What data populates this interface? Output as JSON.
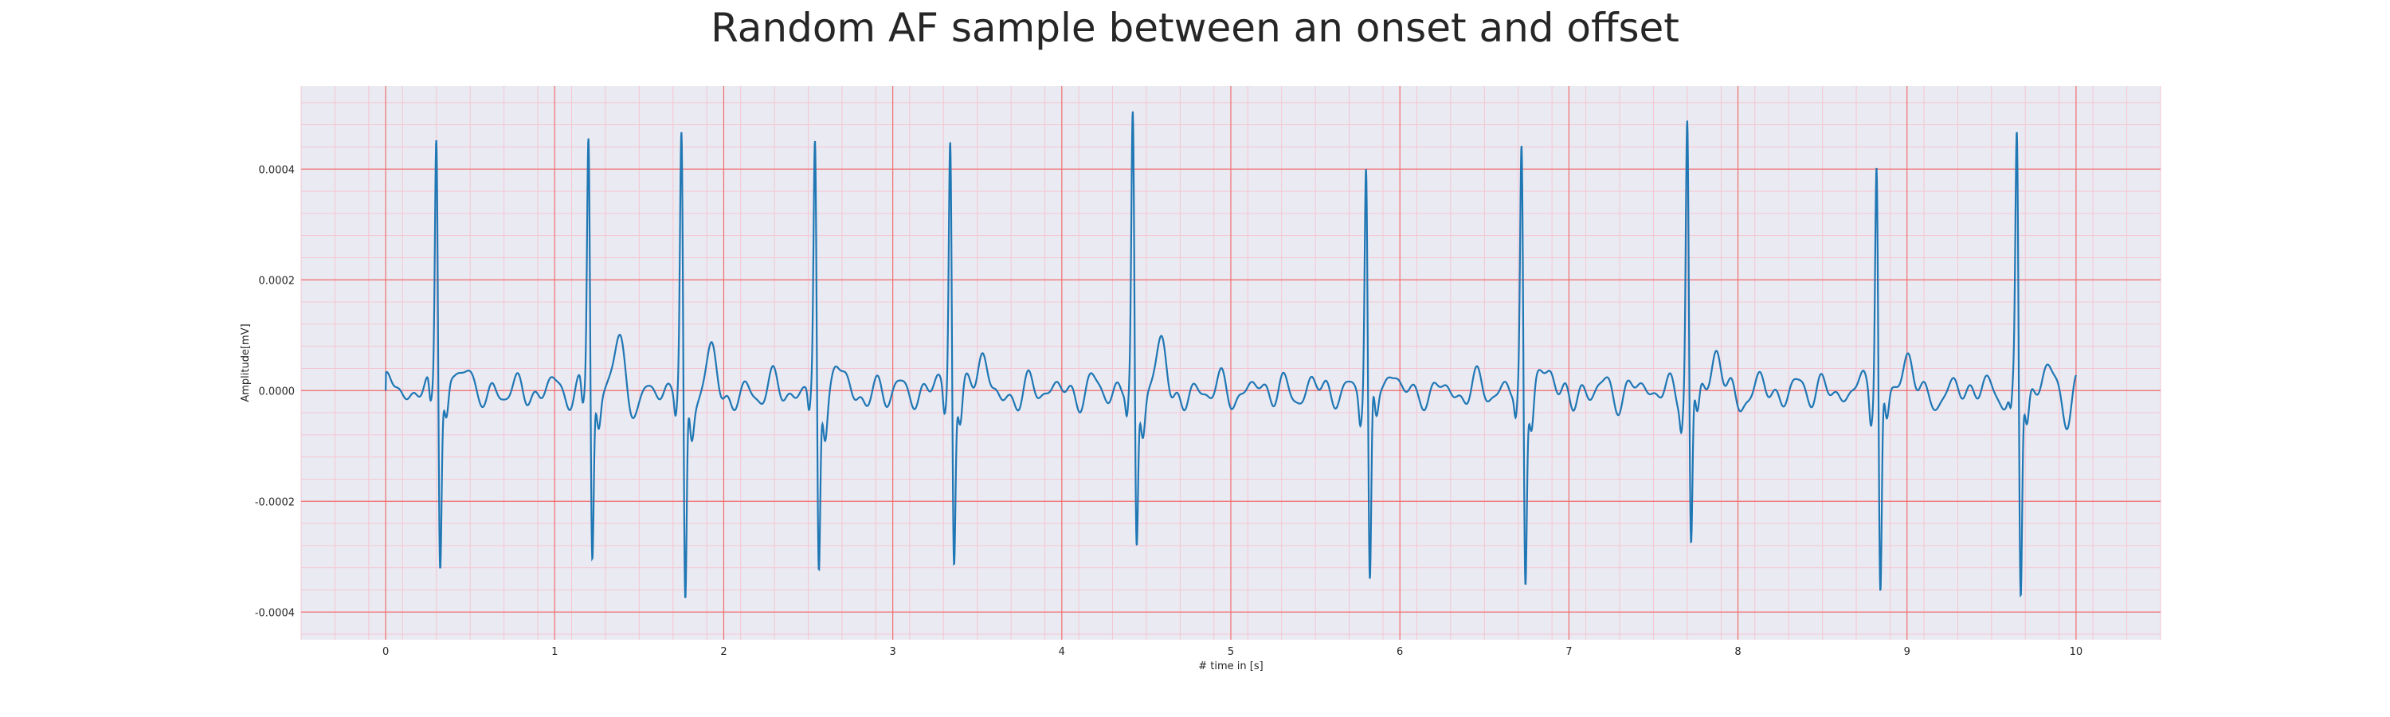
{
  "chart_data": {
    "type": "line",
    "title": "Random AF sample between an onset and offset",
    "xlabel": "# time in [s]",
    "ylabel": "Amplitude[mV]",
    "xlim": [
      -0.5,
      10.5
    ],
    "ylim": [
      -0.00045,
      0.00055
    ],
    "xticks": [
      0,
      1,
      2,
      3,
      4,
      5,
      6,
      7,
      8,
      9,
      10
    ],
    "xtick_labels": [
      "0",
      "1",
      "2",
      "3",
      "4",
      "5",
      "6",
      "7",
      "8",
      "9",
      "10"
    ],
    "yticks": [
      -0.0004,
      -0.0002,
      0.0,
      0.0002,
      0.0004
    ],
    "ytick_labels": [
      "-0.0004",
      "-0.0002",
      "0.0000",
      "0.0002",
      "0.0004"
    ],
    "grid": {
      "major": true,
      "minor": true,
      "major_color": "#f06d6d",
      "minor_color": "#f4c6d2"
    },
    "background_color": "#eaeaf2",
    "line_color": "#1f77b4",
    "r_peaks": [
      {
        "t": 0.3,
        "r": 0.00049,
        "s": -0.00031
      },
      {
        "t": 1.2,
        "r": 0.00048,
        "s": -0.00031
      },
      {
        "t": 1.75,
        "r": 0.00046,
        "s": -0.00041
      },
      {
        "t": 2.54,
        "r": 0.00045,
        "s": -0.00034
      },
      {
        "t": 3.34,
        "r": 0.00048,
        "s": -0.00031
      },
      {
        "t": 4.42,
        "r": 0.0005,
        "s": -0.00029
      },
      {
        "t": 5.8,
        "r": 0.00043,
        "s": -0.00037
      },
      {
        "t": 6.72,
        "r": 0.00045,
        "s": -0.00035
      },
      {
        "t": 7.7,
        "r": 0.0005,
        "s": -0.0003
      },
      {
        "t": 8.82,
        "r": 0.00044,
        "s": -0.00038
      },
      {
        "t": 9.65,
        "r": 0.00045,
        "s": -0.00039
      }
    ],
    "t_start": 0.0,
    "t_end": 10.0
  }
}
